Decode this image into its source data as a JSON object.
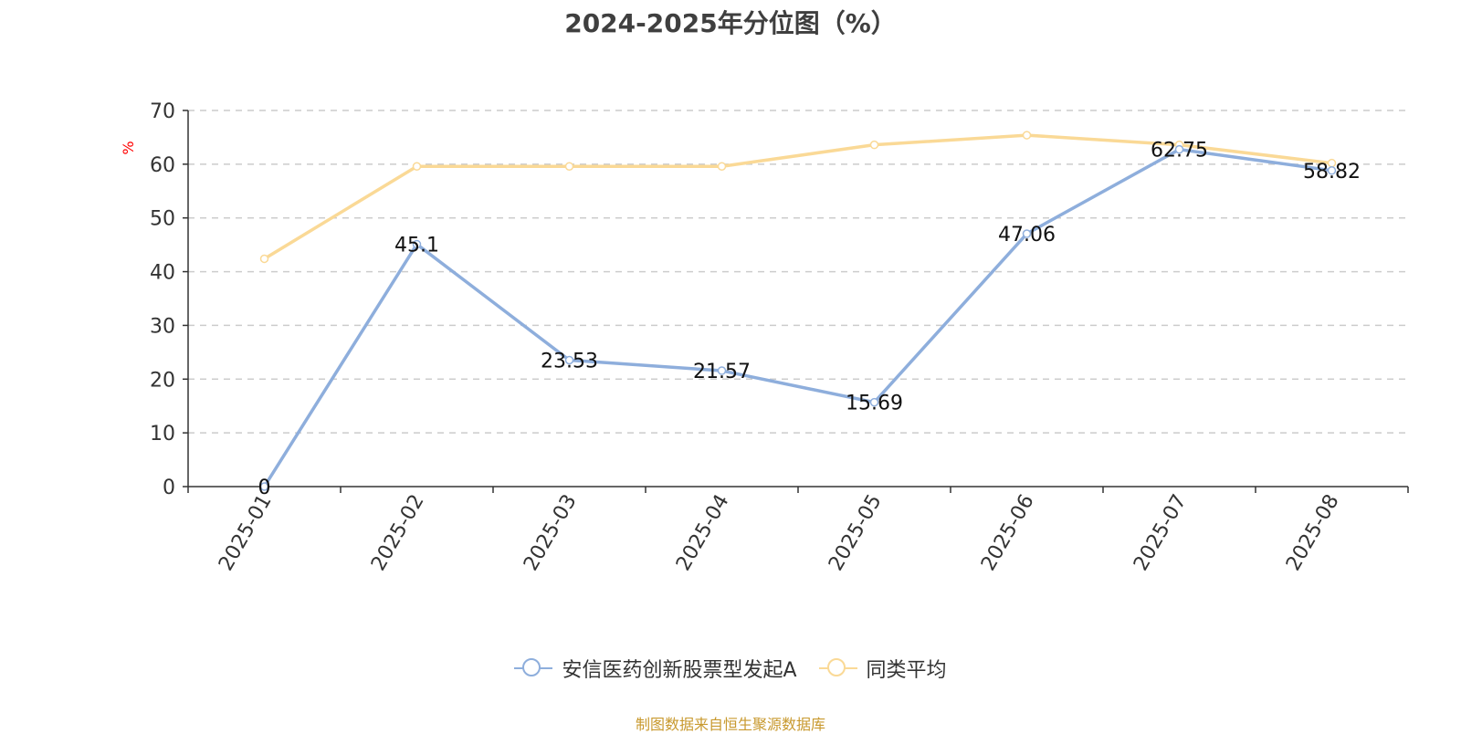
{
  "title": "2024-2025年分位图（%）",
  "source": "制图数据来自恒生聚源数据库",
  "colors": {
    "fund": "#8eaedc",
    "avg": "#fad996",
    "unit": "#ff0000",
    "source": "#c8992e"
  },
  "chart_data": {
    "type": "line",
    "title": "2024-2025年分位图（%）",
    "ylabel": "%",
    "xlabel": "",
    "ylim": [
      0,
      70
    ],
    "yticks": [
      0,
      10,
      20,
      30,
      40,
      50,
      60,
      70
    ],
    "grid": true,
    "legend_position": "bottom",
    "categories": [
      "2025-01",
      "2025-02",
      "2025-03",
      "2025-04",
      "2025-05",
      "2025-06",
      "2025-07",
      "2025-08"
    ],
    "series": [
      {
        "name": "安信医药创新股票型发起A",
        "values": [
          0,
          45.1,
          23.53,
          21.57,
          15.69,
          47.06,
          62.75,
          58.82
        ],
        "labels": [
          "0",
          "45.1",
          "23.53",
          "21.57",
          "15.69",
          "47.06",
          "62.75",
          "58.82"
        ],
        "show_labels": true
      },
      {
        "name": "同类平均",
        "values": [
          42.4,
          59.6,
          59.6,
          59.6,
          63.6,
          65.4,
          63.6,
          60.2
        ],
        "show_labels": false
      }
    ]
  }
}
